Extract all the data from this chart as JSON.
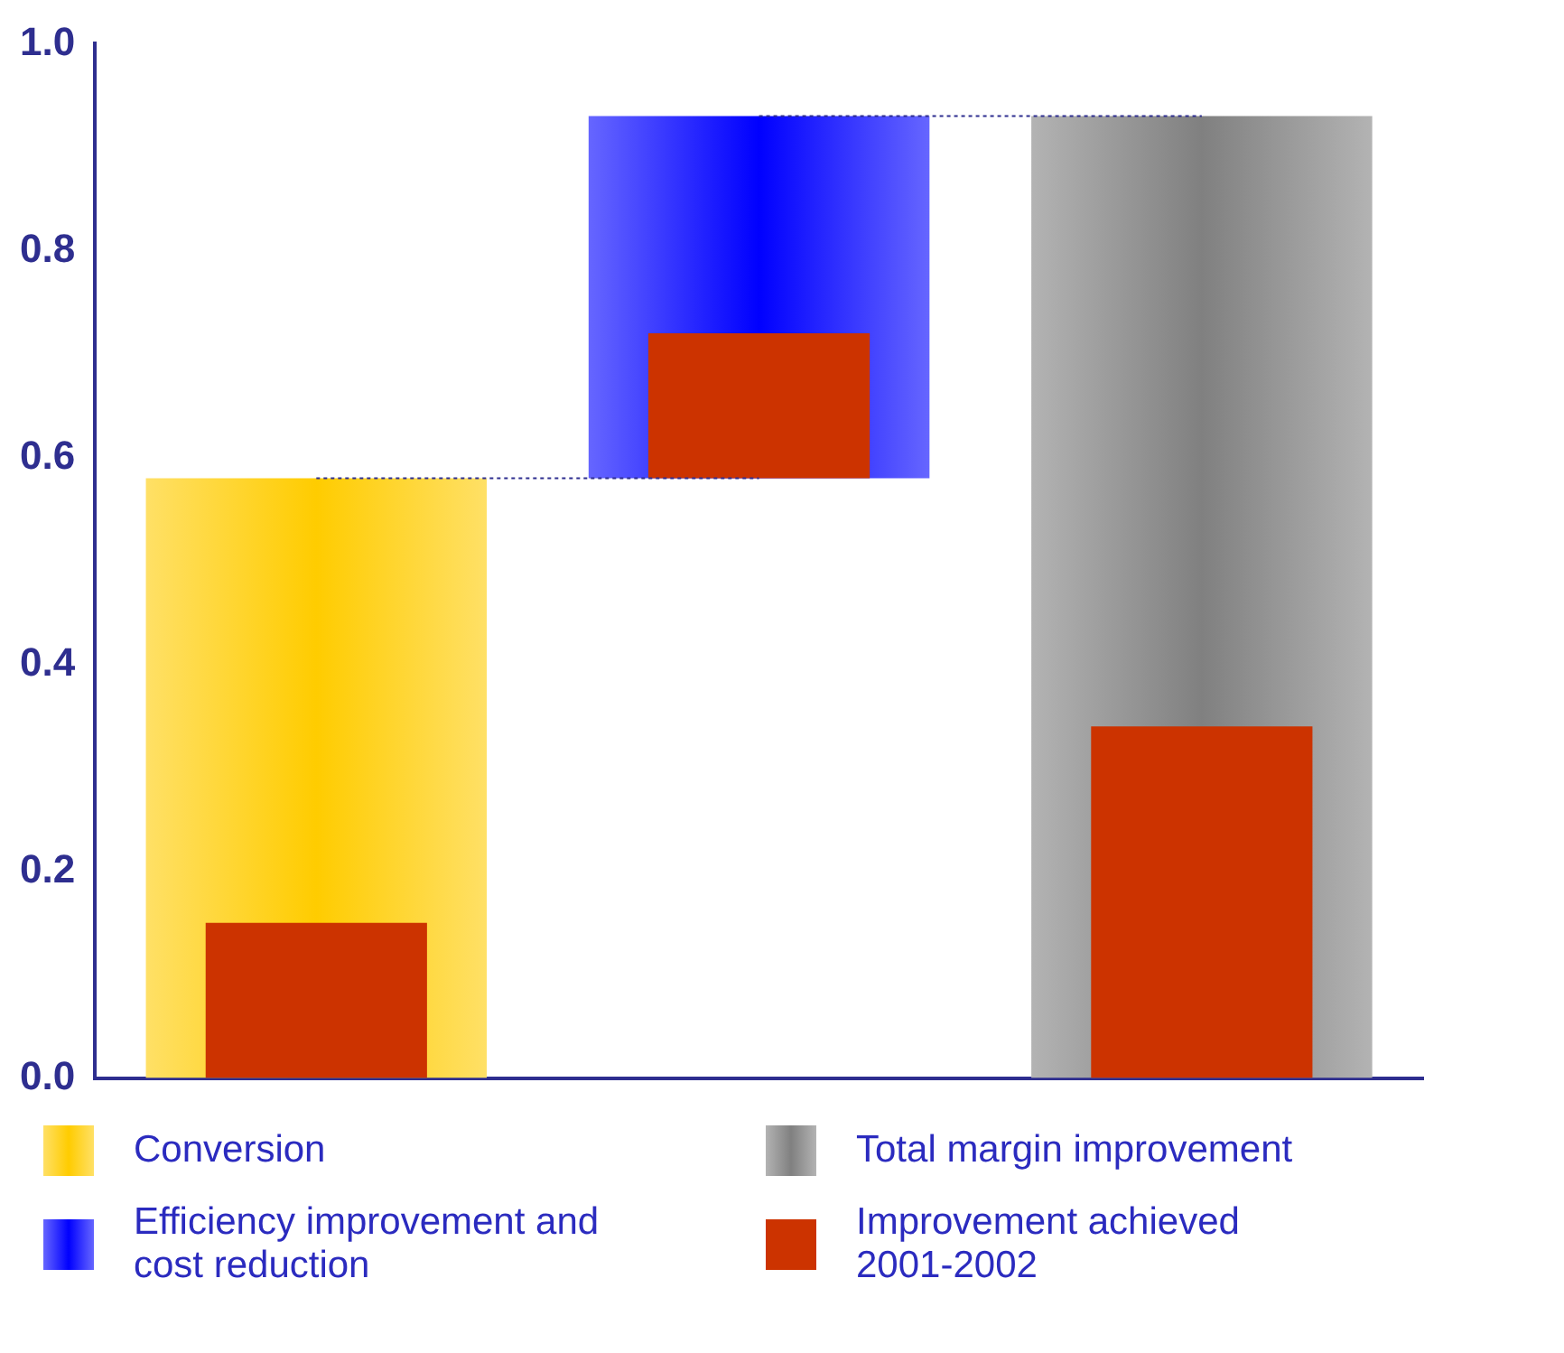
{
  "chart_data": {
    "type": "bar",
    "categories": [
      null,
      null,
      null
    ],
    "series": [
      {
        "name": "Conversion",
        "color": "#ffcc00",
        "values": [
          0.58,
          null,
          null
        ],
        "base": [
          0,
          null,
          null
        ]
      },
      {
        "name": "Efficiency improvement and cost reduction",
        "color": "#0000ff",
        "values": [
          null,
          0.35,
          null
        ],
        "base": [
          null,
          0.58,
          null
        ]
      },
      {
        "name": "Total margin improvement",
        "color": "#808080",
        "values": [
          null,
          null,
          0.93
        ],
        "base": [
          null,
          null,
          0
        ]
      },
      {
        "name": "Improvement achieved 2001-2002",
        "color": "#cc3300",
        "values": [
          0.15,
          0.14,
          0.34
        ],
        "base": [
          0,
          0.58,
          0
        ]
      }
    ],
    "ylim": [
      0,
      1
    ],
    "yticks": [
      {
        "value": 0,
        "label": "0.0"
      },
      {
        "value": 0.2,
        "label": "0.2"
      },
      {
        "value": 0.4,
        "label": "0.4"
      },
      {
        "value": 0.6,
        "label": "0.6"
      },
      {
        "value": 0.8,
        "label": "0.8"
      },
      {
        "value": 1,
        "label": "1.0"
      }
    ],
    "ref_lines": [
      {
        "axis": "y",
        "value": 0.58,
        "line_style": "dotted"
      },
      {
        "axis": "y",
        "value": 0.93,
        "line_style": "dotted"
      }
    ],
    "grid": false,
    "legend": "bottom",
    "tick_labels": "y"
  }
}
